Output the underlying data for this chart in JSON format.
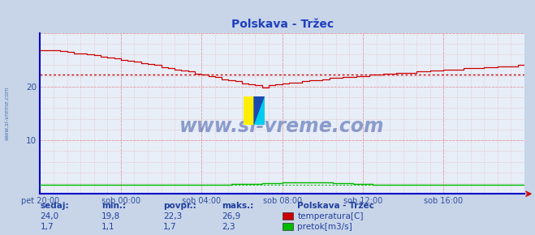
{
  "title": "Polskava - Tržec",
  "bg_color": "#c8d4e8",
  "plot_bg_color": "#e8eef8",
  "grid_color": "#e0a0a0",
  "xlabel_color": "#3050a0",
  "ylabel_color": "#3050a0",
  "title_color": "#2040c0",
  "watermark": "www.si-vreme.com",
  "x_tick_labels": [
    "pet 20:00",
    "sob 00:00",
    "sob 04:00",
    "sob 08:00",
    "sob 12:00",
    "sob 16:00"
  ],
  "x_tick_positions": [
    0,
    48,
    96,
    144,
    192,
    240
  ],
  "ylim": [
    0,
    30
  ],
  "y_ticks": [
    10,
    20
  ],
  "xlim": [
    0,
    288
  ],
  "temp_avg": 22.3,
  "flow_avg": 1.7,
  "temp_color": "#cc0000",
  "flow_color": "#00bb00",
  "legend_title": "Polskava - Tržec",
  "legend_entries": [
    "temperatura[C]",
    "pretok[m3/s]"
  ],
  "legend_colors": [
    "#cc0000",
    "#00bb00"
  ],
  "table_headers": [
    "sedaj:",
    "min.:",
    "povpr.:",
    "maks.:"
  ],
  "table_temp": [
    "24,0",
    "19,8",
    "22,3",
    "26,9"
  ],
  "table_flow": [
    "1,7",
    "1,1",
    "1,7",
    "2,3"
  ],
  "table_color": "#2040a0",
  "sidebar_text": "www.si-vreme.com",
  "sidebar_color": "#3060a0",
  "left_spine_color": "#0000cc",
  "bottom_spine_color": "#0000cc"
}
